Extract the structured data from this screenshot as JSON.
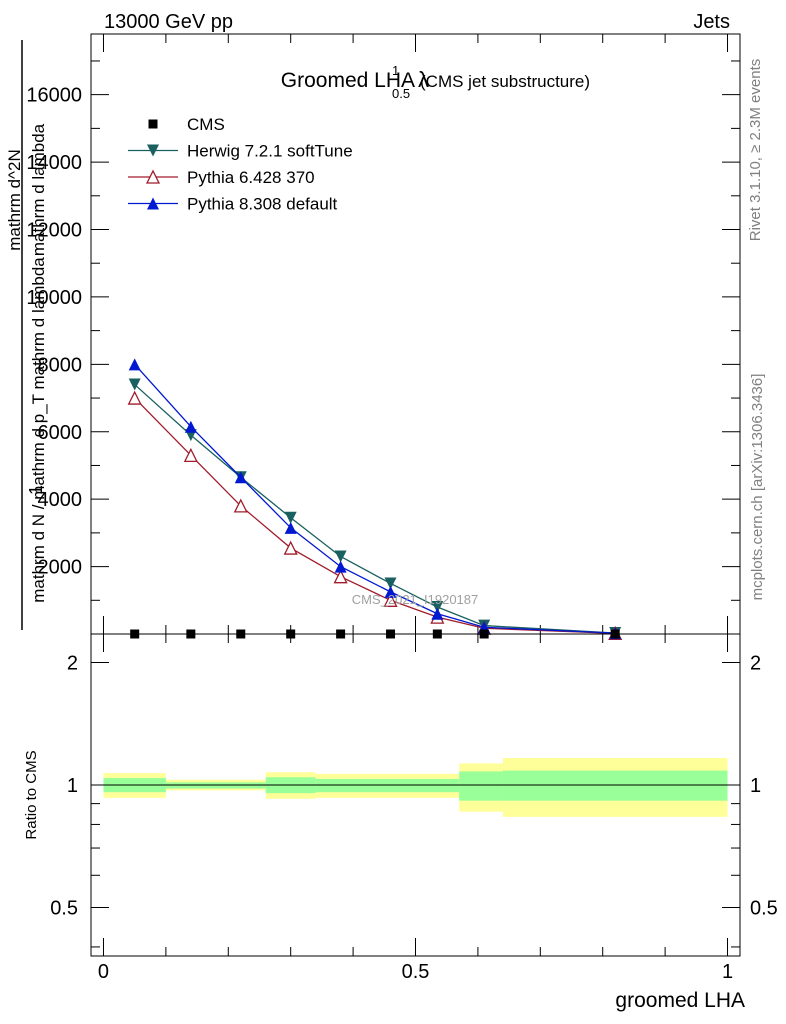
{
  "header": {
    "left": "13000 GeV pp",
    "right": "Jets"
  },
  "side_labels": {
    "rivet": "Rivet 3.1.10, ≥ 2.3M events",
    "mcplots": "mcplots.cern.ch [arXiv:1306.3436]"
  },
  "chart_data": {
    "type": "line",
    "title": "Groomed LHA",
    "title_symbol": "λ",
    "title_superscript": "1",
    "title_subscript": "0.5",
    "subtitle": "(CMS jet substructure)",
    "watermark": "CMS_2021_I1920187",
    "xlabel": "groomed LHA",
    "ylabel_numerator": "mathrm d^2N",
    "ylabel_num_prefix": "1",
    "ylabel_denominator": "mathrm d N / mathrm d p_T mathrm d lambda",
    "ylabel_part1": "mathrm d",
    "ylabel_part2": "N",
    "ylabel_frac": "mathrm d N / mathrm d",
    "ylabel_part3": "mathrm d p",
    "ylabel_part4": "mathrm d lambda",
    "xlim": [
      -0.02,
      1.02
    ],
    "ylim": [
      0,
      17800
    ],
    "xticks": [
      "0",
      "0.5",
      "1"
    ],
    "yticks": [
      "2000",
      "4000",
      "6000",
      "8000",
      "10000",
      "12000",
      "14000",
      "16000"
    ],
    "legend_position": "top-left",
    "series": [
      {
        "name": "CMS",
        "color": "#000000",
        "marker": "square",
        "x": [
          0.05,
          0.14,
          0.22,
          0.3,
          0.38,
          0.46,
          0.535,
          0.61,
          0.82
        ],
        "y": [
          0,
          0,
          0,
          0,
          0,
          0,
          0,
          0,
          0
        ]
      },
      {
        "name": "Herwig 7.2.1 softTune",
        "color": "#1a6060",
        "marker": "triangle-down",
        "x": [
          0.05,
          0.14,
          0.22,
          0.3,
          0.38,
          0.46,
          0.535,
          0.61,
          0.82
        ],
        "y": [
          7400,
          5900,
          4650,
          3450,
          2300,
          1500,
          800,
          250,
          30
        ]
      },
      {
        "name": "Pythia 6.428 370",
        "color": "#a01c2c",
        "marker": "triangle-up-open",
        "x": [
          0.05,
          0.14,
          0.22,
          0.3,
          0.38,
          0.46,
          0.535,
          0.61,
          0.82
        ],
        "y": [
          7000,
          5300,
          3800,
          2550,
          1700,
          1000,
          500,
          170,
          20
        ]
      },
      {
        "name": "Pythia 8.308 default",
        "color": "#0018d0",
        "marker": "triangle-up",
        "x": [
          0.05,
          0.14,
          0.22,
          0.3,
          0.38,
          0.46,
          0.535,
          0.61,
          0.82
        ],
        "y": [
          8000,
          6150,
          4650,
          3150,
          2000,
          1250,
          600,
          200,
          25
        ]
      }
    ],
    "ratio": {
      "ylabel": "Ratio to CMS",
      "ylim": [
        0.38,
        2.35
      ],
      "yticks": [
        "0.5",
        "1",
        "2"
      ],
      "reference": 1,
      "bins": [
        {
          "x0": 0.0,
          "x1": 0.1,
          "inner": [
            0.96,
            1.04
          ],
          "outer": [
            0.93,
            1.07
          ]
        },
        {
          "x0": 0.1,
          "x1": 0.26,
          "inner": [
            0.98,
            1.015
          ],
          "outer": [
            0.97,
            1.03
          ]
        },
        {
          "x0": 0.26,
          "x1": 0.34,
          "inner": [
            0.955,
            1.045
          ],
          "outer": [
            0.925,
            1.075
          ]
        },
        {
          "x0": 0.34,
          "x1": 0.57,
          "inner": [
            0.96,
            1.035
          ],
          "outer": [
            0.93,
            1.065
          ]
        },
        {
          "x0": 0.57,
          "x1": 0.64,
          "inner": [
            0.915,
            1.08
          ],
          "outer": [
            0.86,
            1.13
          ]
        },
        {
          "x0": 0.64,
          "x1": 1.0,
          "inner": [
            0.915,
            1.085
          ],
          "outer": [
            0.835,
            1.165
          ]
        }
      ]
    }
  }
}
